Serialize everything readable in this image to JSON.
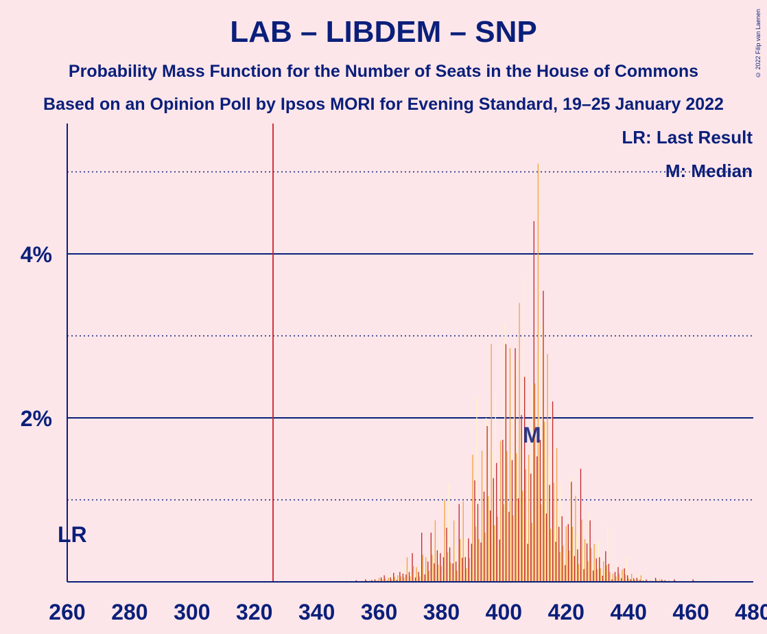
{
  "title": "LAB – LIBDEM – SNP",
  "subtitle1": "Probability Mass Function for the Number of Seats in the House of Commons",
  "subtitle2": "Based on an Opinion Poll by Ipsos MORI for Evening Standard, 19–25 January 2022",
  "copyright": "© 2022 Filip van Laenen",
  "legend": {
    "lr": "LR: Last Result",
    "median": "M: Median"
  },
  "lr_marker_label": "LR",
  "median_marker_label": "M",
  "colors": {
    "background": "#FDE6EA",
    "text": "#0A1F7A",
    "bar_dark": "#C0262D",
    "bar_mid": "#F0A43B",
    "bar_light": "#FFF3C6",
    "last_result_line": "#D01F2B"
  },
  "chart_data": {
    "type": "bar",
    "xlabel": "",
    "ylabel": "",
    "xlim": [
      260,
      480
    ],
    "ylim": [
      0,
      5.5
    ],
    "x_ticks": [
      "260",
      "280",
      "300",
      "320",
      "340",
      "360",
      "380",
      "400",
      "420",
      "440",
      "460",
      "480"
    ],
    "y_ticks": [
      {
        "value": 2,
        "label": "2%"
      },
      {
        "value": 4,
        "label": "4%"
      }
    ],
    "dotted_gridlines": [
      1,
      3,
      5
    ],
    "last_result": 326,
    "median": 409,
    "seats": [
      350,
      351,
      352,
      353,
      354,
      355,
      356,
      357,
      358,
      359,
      360,
      361,
      362,
      363,
      364,
      365,
      366,
      367,
      368,
      369,
      370,
      371,
      372,
      373,
      374,
      375,
      376,
      377,
      378,
      379,
      380,
      381,
      382,
      383,
      384,
      385,
      386,
      387,
      388,
      389,
      390,
      391,
      392,
      393,
      394,
      395,
      396,
      397,
      398,
      399,
      400,
      401,
      402,
      403,
      404,
      405,
      406,
      407,
      408,
      409,
      410,
      411,
      412,
      413,
      414,
      415,
      416,
      417,
      418,
      419,
      420,
      421,
      422,
      423,
      424,
      425,
      426,
      427,
      428,
      429,
      430,
      431,
      432,
      433,
      434,
      435,
      436,
      437,
      438,
      439,
      440,
      441,
      442,
      443,
      444,
      445,
      446,
      447,
      448,
      449,
      450,
      451,
      452,
      453,
      454,
      455,
      456,
      457,
      458,
      459,
      460,
      461,
      462,
      463,
      464,
      465
    ],
    "values": [
      0.01,
      0.01,
      0.01,
      0.02,
      0.01,
      0.02,
      0.03,
      0.02,
      0.04,
      0.03,
      0.05,
      0.1,
      0.08,
      0.05,
      0.1,
      0.11,
      0.08,
      0.22,
      0.1,
      0.3,
      0.22,
      0.35,
      0.18,
      0.22,
      0.6,
      0.3,
      0.45,
      0.6,
      0.75,
      0.7,
      0.35,
      1.0,
      1.2,
      0.42,
      0.75,
      0.45,
      0.95,
      0.98,
      0.55,
      0.53,
      1.55,
      2.25,
      0.95,
      1.6,
      2.0,
      1.9,
      2.9,
      2.3,
      1.45,
      1.72,
      3.15,
      2.9,
      2.85,
      2.7,
      2.85,
      3.4,
      3.7,
      2.5,
      1.55,
      2.4,
      4.4,
      5.1,
      3.15,
      3.55,
      2.78,
      2.15,
      2.2,
      1.63,
      1.22,
      0.8,
      0.68,
      1.28,
      1.22,
      1.05,
      0.72,
      1.38,
      0.52,
      0.85,
      0.75,
      0.46,
      0.52,
      0.3,
      0.25,
      0.68,
      0.22,
      0.1,
      0.22,
      0.18,
      0.15,
      0.3,
      0.08,
      0.1,
      0.08,
      0.05,
      0.08,
      0.03,
      0.03,
      0.02,
      0.02,
      0.05,
      0.03,
      0.05,
      0.02,
      0.02,
      0.01,
      0.03,
      0.01,
      0.01,
      0.01,
      0.01,
      0.01,
      0.03,
      0.01,
      0.01,
      0.01,
      0.01
    ]
  }
}
